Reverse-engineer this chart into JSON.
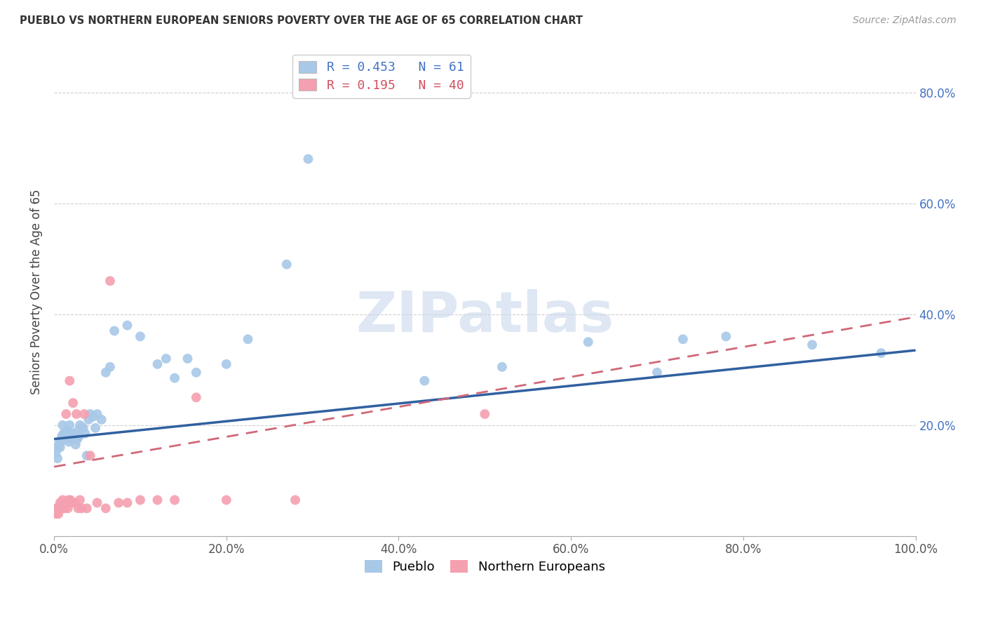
{
  "title": "PUEBLO VS NORTHERN EUROPEAN SENIORS POVERTY OVER THE AGE OF 65 CORRELATION CHART",
  "source": "Source: ZipAtlas.com",
  "ylabel": "Seniors Poverty Over the Age of 65",
  "xlim": [
    0,
    1.0
  ],
  "ylim": [
    0,
    0.88
  ],
  "x_ticks": [
    0.0,
    0.2,
    0.4,
    0.6,
    0.8,
    1.0
  ],
  "x_tick_labels": [
    "0.0%",
    "20.0%",
    "40.0%",
    "60.0%",
    "80.0%",
    "100.0%"
  ],
  "y_ticks": [
    0.0,
    0.2,
    0.4,
    0.6,
    0.8
  ],
  "y_tick_labels_right": [
    "",
    "20.0%",
    "40.0%",
    "60.0%",
    "80.0%"
  ],
  "pueblo_color": "#a8c8e8",
  "northern_color": "#f4a0b0",
  "pueblo_R": 0.453,
  "pueblo_N": 61,
  "northern_R": 0.195,
  "northern_N": 40,
  "pueblo_line_color": "#3060a0",
  "northern_line_color": "#d06878",
  "background_color": "#ffffff",
  "grid_color": "#d0d0d0",
  "pueblo_line_y0": 0.175,
  "pueblo_line_y1": 0.335,
  "northern_line_y0": 0.125,
  "northern_line_y1": 0.395,
  "pueblo_x": [
    0.002,
    0.003,
    0.004,
    0.005,
    0.006,
    0.007,
    0.008,
    0.009,
    0.01,
    0.011,
    0.012,
    0.013,
    0.014,
    0.015,
    0.016,
    0.017,
    0.018,
    0.019,
    0.02,
    0.021,
    0.022,
    0.023,
    0.024,
    0.025,
    0.026,
    0.027,
    0.028,
    0.029,
    0.03,
    0.032,
    0.034,
    0.036,
    0.038,
    0.04,
    0.042,
    0.045,
    0.048,
    0.05,
    0.055,
    0.06,
    0.065,
    0.07,
    0.085,
    0.1,
    0.12,
    0.13,
    0.14,
    0.155,
    0.165,
    0.2,
    0.225,
    0.27,
    0.295,
    0.43,
    0.52,
    0.62,
    0.7,
    0.73,
    0.78,
    0.88,
    0.96
  ],
  "pueblo_y": [
    0.15,
    0.16,
    0.14,
    0.16,
    0.17,
    0.16,
    0.17,
    0.18,
    0.2,
    0.185,
    0.175,
    0.18,
    0.18,
    0.19,
    0.185,
    0.17,
    0.2,
    0.185,
    0.175,
    0.185,
    0.175,
    0.18,
    0.175,
    0.165,
    0.18,
    0.175,
    0.19,
    0.18,
    0.2,
    0.195,
    0.195,
    0.185,
    0.145,
    0.21,
    0.22,
    0.215,
    0.195,
    0.22,
    0.21,
    0.295,
    0.305,
    0.37,
    0.38,
    0.36,
    0.31,
    0.32,
    0.285,
    0.32,
    0.295,
    0.31,
    0.355,
    0.49,
    0.68,
    0.28,
    0.305,
    0.35,
    0.295,
    0.355,
    0.36,
    0.345,
    0.33
  ],
  "northern_x": [
    0.002,
    0.003,
    0.004,
    0.005,
    0.006,
    0.007,
    0.008,
    0.009,
    0.01,
    0.011,
    0.012,
    0.013,
    0.014,
    0.015,
    0.016,
    0.017,
    0.018,
    0.019,
    0.02,
    0.022,
    0.024,
    0.026,
    0.028,
    0.03,
    0.032,
    0.035,
    0.038,
    0.042,
    0.05,
    0.06,
    0.065,
    0.075,
    0.085,
    0.1,
    0.12,
    0.14,
    0.165,
    0.2,
    0.28,
    0.5
  ],
  "northern_y": [
    0.04,
    0.05,
    0.05,
    0.04,
    0.05,
    0.06,
    0.05,
    0.06,
    0.065,
    0.06,
    0.05,
    0.06,
    0.22,
    0.06,
    0.05,
    0.065,
    0.28,
    0.065,
    0.06,
    0.24,
    0.06,
    0.22,
    0.05,
    0.065,
    0.05,
    0.22,
    0.05,
    0.145,
    0.06,
    0.05,
    0.46,
    0.06,
    0.06,
    0.065,
    0.065,
    0.065,
    0.25,
    0.065,
    0.065,
    0.22
  ]
}
